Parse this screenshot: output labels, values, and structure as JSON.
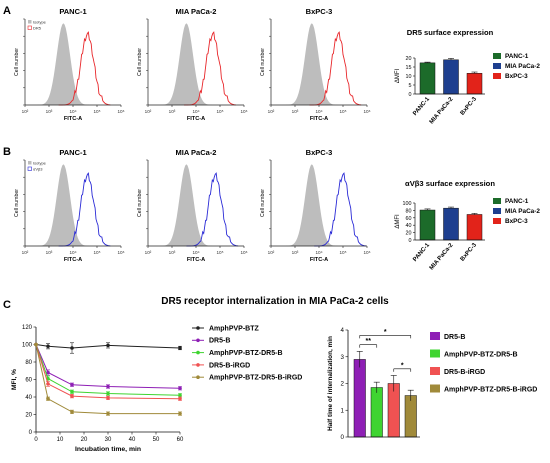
{
  "panel_letters": [
    "A",
    "B",
    "C"
  ],
  "colors": {
    "isotype": "#bdbdbd",
    "dr5_trace": "#e8262a",
    "avb3_trace": "#2a2ad6",
    "panc1_bar": "#1c6b2a",
    "miapaca2_bar": "#1e3f8f",
    "bxpc3_bar": "#e2231a",
    "amphpvp_btz": "#222222",
    "dr5_b": "#8e1fb5",
    "amphpvp_btz_dr5_b": "#3fd431",
    "dr5_b_irgd": "#f05252",
    "amphpvp_btz_dr5_b_irgd": "#a08a3a"
  },
  "chart_data": [
    {
      "id": "A-histograms",
      "type": "area",
      "legend": [
        "Isotype",
        "DR5"
      ],
      "panels": [
        "PANC-1",
        "MIA PaCa-2",
        "BxPC-3"
      ],
      "xlabel": "FITC-A",
      "ylabel": "Cell number",
      "x_scale": "log",
      "x_ticks": [
        "10²",
        "10³",
        "10⁴",
        "10⁵",
        "10⁶"
      ],
      "peak_log10": {
        "isotype": [
          3.6,
          3.6,
          3.7
        ],
        "stained": [
          4.6,
          4.7,
          4.8
        ]
      }
    },
    {
      "id": "A-bar",
      "type": "bar",
      "title": "DR5 surface expression",
      "categories": [
        "PANC-1",
        "MIA PaCa-2",
        "BxPC-3"
      ],
      "values": [
        17.3,
        19.0,
        11.5
      ],
      "errors": [
        0.4,
        0.8,
        0.7
      ],
      "ylabel": "ΔMFI",
      "ylim": [
        0,
        20
      ],
      "yticks": [
        0,
        5,
        10,
        15,
        20
      ],
      "legend": [
        "PANC-1",
        "MIA PaCa-2",
        "BxPC-3"
      ],
      "legend_position": "right"
    },
    {
      "id": "B-histograms",
      "type": "area",
      "legend": [
        "Isotype",
        "αVβ3"
      ],
      "panels": [
        "PANC-1",
        "MIA PaCa-2",
        "BxPC-3"
      ],
      "xlabel": "FITC-A",
      "ylabel": "Cell number",
      "x_scale": "log",
      "x_ticks": [
        "10²",
        "10³",
        "10⁴",
        "10⁵",
        "10⁶"
      ],
      "peak_log10": {
        "isotype": [
          3.6,
          3.6,
          3.7
        ],
        "stained": [
          4.6,
          4.8,
          5.0
        ]
      }
    },
    {
      "id": "B-bar",
      "type": "bar",
      "title": "αVβ3 surface expression",
      "categories": [
        "PANC-1",
        "MIA PaCa-2",
        "BxPC-3"
      ],
      "values": [
        81,
        86,
        69
      ],
      "errors": [
        3,
        3,
        3
      ],
      "ylabel": "ΔMFI",
      "ylim": [
        0,
        100
      ],
      "yticks": [
        0,
        20,
        40,
        60,
        80,
        100
      ],
      "legend": [
        "PANC-1",
        "MIA PaCa-2",
        "BxPC-3"
      ],
      "legend_position": "right"
    },
    {
      "id": "C-line",
      "type": "line",
      "title": "DR5 receptor internalization in MIA PaCa-2 cells",
      "xlabel": "Incubation time, min",
      "ylabel": "MFI, %",
      "x": [
        0,
        5,
        15,
        30,
        60
      ],
      "xlim": [
        0,
        60
      ],
      "xticks": [
        0,
        10,
        20,
        30,
        40,
        50,
        60
      ],
      "ylim": [
        0,
        120
      ],
      "yticks": [
        0,
        20,
        40,
        60,
        80,
        100,
        120
      ],
      "series": [
        {
          "name": "AmphPVP-BTZ",
          "values": [
            100,
            98,
            96,
            99,
            96
          ],
          "errors": [
            0,
            3,
            6,
            3,
            2
          ]
        },
        {
          "name": "DR5-B",
          "values": [
            100,
            68,
            54,
            52,
            50
          ],
          "errors": [
            0,
            3,
            2,
            2,
            2
          ]
        },
        {
          "name": "AmphPVP-BTZ-DR5-B",
          "values": [
            100,
            61,
            46,
            44,
            42
          ],
          "errors": [
            0,
            3,
            2,
            2,
            2
          ]
        },
        {
          "name": "DR5-B-iRGD",
          "values": [
            100,
            55,
            41,
            39,
            38
          ],
          "errors": [
            0,
            3,
            2,
            2,
            2
          ]
        },
        {
          "name": "AmphPVP-BTZ-DR5-B-iRGD",
          "values": [
            100,
            38,
            23,
            21,
            21
          ],
          "errors": [
            0,
            2,
            2,
            2,
            2
          ]
        }
      ],
      "legend_position": "right"
    },
    {
      "id": "C-bar",
      "type": "bar",
      "categories": [
        "DR5-B",
        "AmphPVP-BTZ-DR5-B",
        "DR5-B-iRGD",
        "AmphPVP-BTZ-DR5-B-iRGD"
      ],
      "values": [
        2.9,
        1.85,
        2.0,
        1.55
      ],
      "errors": [
        0.3,
        0.2,
        0.3,
        0.2
      ],
      "ylabel": "Half time of internalization, min",
      "ylim": [
        0,
        4
      ],
      "yticks": [
        0,
        1,
        2,
        3,
        4
      ],
      "significance": [
        {
          "from": 0,
          "to": 1,
          "label": "**"
        },
        {
          "from": 0,
          "to": 3,
          "label": "*"
        },
        {
          "from": 2,
          "to": 3,
          "label": "*"
        }
      ],
      "legend_position": "right"
    }
  ]
}
